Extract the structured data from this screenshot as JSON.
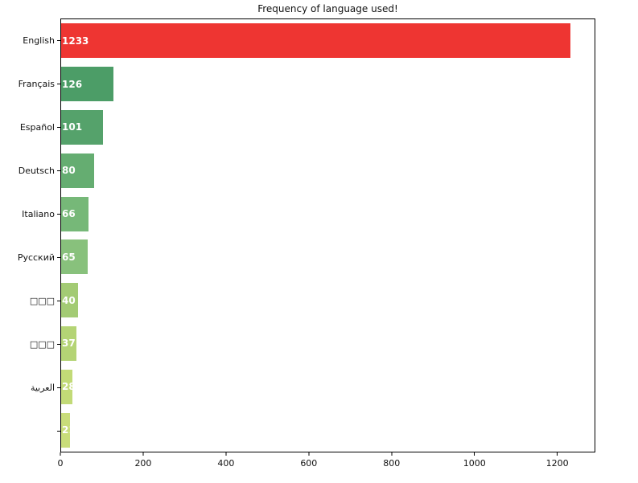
{
  "chart_data": {
    "type": "bar",
    "orientation": "horizontal",
    "title": "Frequency of language used!",
    "categories": [
      "English",
      "Français",
      "Español",
      "Deutsch",
      "Italiano",
      "Русский",
      "□□□",
      "□□□",
      "العربية",
      ""
    ],
    "values": [
      1233,
      126,
      101,
      80,
      66,
      65,
      40,
      37,
      28,
      21
    ],
    "value_labels": [
      "1233",
      "126",
      "101",
      "80",
      "66",
      "65",
      "40",
      "37",
      "28",
      "21"
    ],
    "bar_colors": [
      "#ee3532",
      "#4c9d67",
      "#55a26b",
      "#65ad71",
      "#76b878",
      "#88c17c",
      "#a3cb74",
      "#b4d475",
      "#c2da77",
      "#c9dd7a"
    ],
    "xlabel": "",
    "ylabel": "",
    "xlim": [
      0,
      1292
    ],
    "xticks": [
      0,
      200,
      400,
      600,
      800,
      1000,
      1200
    ],
    "grid": false,
    "legend": null,
    "value_label_color": "#ffffff",
    "axis_color": "#000000",
    "background": "#ffffff"
  }
}
